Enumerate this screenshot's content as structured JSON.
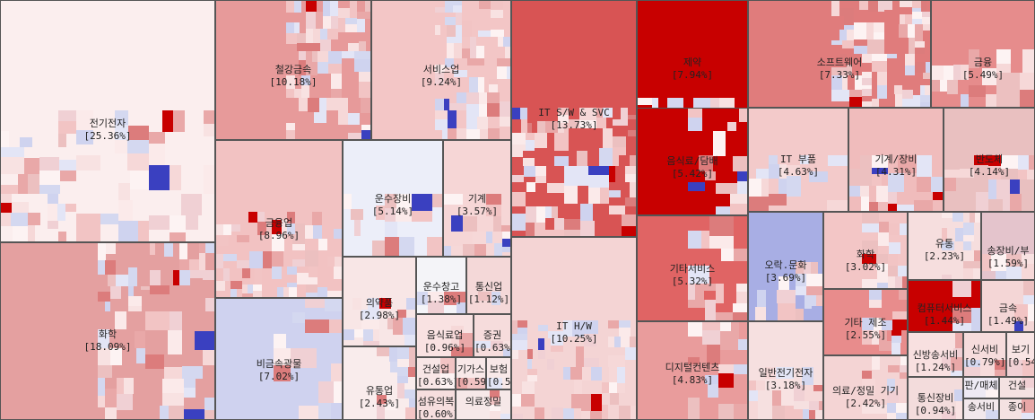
{
  "chart_data": {
    "type": "treemap",
    "title": "",
    "color_scale": {
      "positive": "#c80000",
      "neutral": "#fff3f3",
      "negative": "#2a30b8"
    },
    "groups": [
      {
        "name": "전기전자",
        "value": "25.36%"
      },
      {
        "name": "화학",
        "value": "18.09%"
      },
      {
        "name": "철강금속",
        "value": "10.18%"
      },
      {
        "name": "서비스업",
        "value": "9.24%"
      },
      {
        "name": "금융업",
        "value": "8.96%"
      },
      {
        "name": "운수장비",
        "value": "5.14%"
      },
      {
        "name": "기계",
        "value": "3.57%"
      },
      {
        "name": "비금속광물",
        "value": "7.02%"
      },
      {
        "name": "의약품",
        "value": "2.98%"
      },
      {
        "name": "운수창고",
        "value": "1.38%"
      },
      {
        "name": "통신업",
        "value": "1.12%"
      },
      {
        "name": "음식료업",
        "value": "0.96%"
      },
      {
        "name": "증권",
        "value": "0.63%"
      },
      {
        "name": "유통업",
        "value": "2.43%"
      },
      {
        "name": "건설업",
        "value": "0.63%"
      },
      {
        "name": "기가스",
        "value": "0.59%"
      },
      {
        "name": "보험",
        "value": "0.54%"
      },
      {
        "name": "섬유의복",
        "value": "0.60%"
      },
      {
        "name": "의료정밀",
        "value": ""
      },
      {
        "name": "IT S/W & SVC",
        "value": "13.73%"
      },
      {
        "name": "IT H/W",
        "value": "10.25%"
      },
      {
        "name": "제약",
        "value": "7.94%"
      },
      {
        "name": "소프트웨어",
        "value": "7.33%"
      },
      {
        "name": "금융",
        "value": "5.49%"
      },
      {
        "name": "음식료/담배",
        "value": "5.42%"
      },
      {
        "name": "IT 부품",
        "value": "4.63%"
      },
      {
        "name": "기계/장비",
        "value": "4.31%"
      },
      {
        "name": "반도체",
        "value": "4.14%"
      },
      {
        "name": "기타서비스",
        "value": "5.32%"
      },
      {
        "name": "오락.문화",
        "value": "3.69%"
      },
      {
        "name": "화학",
        "value": "3.02%"
      },
      {
        "name": "유통",
        "value": "2.23%"
      },
      {
        "name": "송장비/부",
        "value": "1.59%"
      },
      {
        "name": "기타 제조",
        "value": "2.55%"
      },
      {
        "name": "컴퓨터서비스",
        "value": "1.44%"
      },
      {
        "name": "금속",
        "value": "1.49%"
      },
      {
        "name": "디지털컨텐츠",
        "value": "4.83%"
      },
      {
        "name": "일반전기전자",
        "value": "3.18%"
      },
      {
        "name": "의료/정밀 기기",
        "value": "2.42%"
      },
      {
        "name": "신방송서비",
        "value": "1.24%"
      },
      {
        "name": "신서비",
        "value": "0.79%"
      },
      {
        "name": "보기",
        "value": "0.54%"
      },
      {
        "name": "통신장비",
        "value": "0.94%"
      },
      {
        "name": "판/매체",
        "value": ""
      },
      {
        "name": "건설",
        "value": ""
      },
      {
        "name": "종이",
        "value": ""
      },
      {
        "name": "송서비",
        "value": ""
      }
    ]
  }
}
